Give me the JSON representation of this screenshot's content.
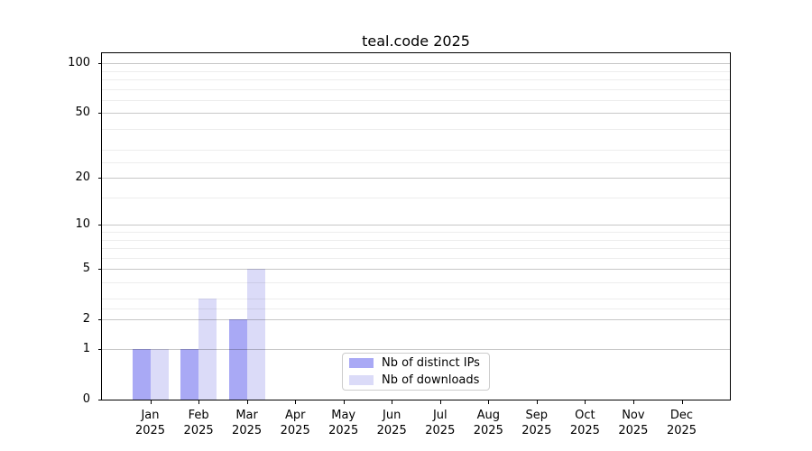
{
  "figure": {
    "background": "#ffffff"
  },
  "chart_data": {
    "type": "bar",
    "title": "teal.code 2025",
    "categories": [
      "Jan",
      "Feb",
      "Mar",
      "Apr",
      "May",
      "Jun",
      "Jul",
      "Aug",
      "Sep",
      "Oct",
      "Nov",
      "Dec"
    ],
    "category_year": "2025",
    "series": [
      {
        "name": "Nb of distinct IPs",
        "color": "#a9a9f5",
        "values": [
          1,
          1,
          2,
          0,
          0,
          0,
          0,
          0,
          0,
          0,
          0,
          0
        ]
      },
      {
        "name": "Nb of downloads",
        "color": "#dbdbf8",
        "values": [
          1,
          3,
          5,
          0,
          0,
          0,
          0,
          0,
          0,
          0,
          0,
          0
        ]
      }
    ],
    "xlabel": "",
    "ylabel": "",
    "y_scale": "log10(value+1)",
    "ylim": [
      0,
      115
    ],
    "y_major_ticks": [
      0,
      1,
      2,
      5,
      10,
      20,
      50,
      100
    ],
    "y_minor_gridlines": [
      2.5,
      3,
      4,
      6,
      7,
      8,
      9,
      15,
      25,
      30,
      40,
      60,
      70,
      80,
      90
    ],
    "grid": "horizontal",
    "legend_position": "inside-bottom-center",
    "axis_color": "#000000",
    "major_grid_color": "#c7c7c7",
    "minor_grid_color": "#ededed",
    "legend_border_color": "#cccccc"
  }
}
